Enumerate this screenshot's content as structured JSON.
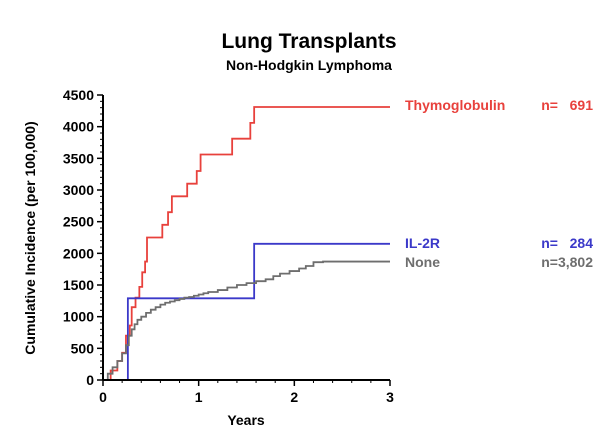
{
  "chart_data": {
    "type": "line",
    "title": "Lung Transplants",
    "subtitle": "Non-Hodgkin Lymphoma",
    "xlabel": "Years",
    "ylabel": "Cumulative Incidence (per 100,000)",
    "xlim": [
      0,
      3
    ],
    "ylim": [
      0,
      4500
    ],
    "x_ticks": [
      0,
      1,
      2,
      3
    ],
    "y_ticks": [
      0,
      500,
      1000,
      1500,
      2000,
      2500,
      3000,
      3500,
      4000,
      4500
    ],
    "grid": false,
    "legend_position": "right",
    "series": [
      {
        "name": "Thymoglobulin",
        "n_label": "n=   691",
        "color": "#e8413c",
        "step": true,
        "x": [
          0,
          0.08,
          0.15,
          0.2,
          0.24,
          0.28,
          0.3,
          0.34,
          0.38,
          0.41,
          0.44,
          0.46,
          0.54,
          0.62,
          0.68,
          0.72,
          0.8,
          0.88,
          0.94,
          0.98,
          1.02,
          1.1,
          1.22,
          1.32,
          1.35,
          1.5,
          1.54,
          1.58,
          1.7,
          3.0
        ],
        "y": [
          0,
          150,
          300,
          430,
          700,
          860,
          1150,
          1300,
          1470,
          1700,
          1870,
          2250,
          2250,
          2450,
          2650,
          2900,
          2900,
          3100,
          3100,
          3300,
          3560,
          3560,
          3560,
          3560,
          3810,
          3810,
          4060,
          4310,
          4310,
          4310
        ]
      },
      {
        "name": "IL-2R",
        "n_label": "n=   284",
        "color": "#3b39c9",
        "step": true,
        "x": [
          0,
          0.25,
          0.26,
          1.57,
          1.58,
          3.0
        ],
        "y": [
          0,
          0,
          1290,
          1290,
          2150,
          2150
        ]
      },
      {
        "name": "None",
        "n_label": "n=3,802",
        "color": "#6e6e6e",
        "step": true,
        "x": [
          0,
          0.05,
          0.1,
          0.15,
          0.2,
          0.24,
          0.27,
          0.3,
          0.33,
          0.36,
          0.4,
          0.45,
          0.5,
          0.55,
          0.6,
          0.65,
          0.7,
          0.75,
          0.8,
          0.85,
          0.9,
          0.95,
          1.0,
          1.05,
          1.1,
          1.2,
          1.3,
          1.4,
          1.5,
          1.6,
          1.7,
          1.78,
          1.85,
          1.95,
          2.05,
          2.12,
          2.2,
          2.3,
          2.5,
          2.7,
          3.0
        ],
        "y": [
          0,
          100,
          200,
          300,
          420,
          550,
          700,
          800,
          880,
          950,
          1000,
          1060,
          1110,
          1150,
          1190,
          1220,
          1240,
          1260,
          1280,
          1300,
          1310,
          1330,
          1350,
          1370,
          1390,
          1420,
          1460,
          1500,
          1530,
          1560,
          1590,
          1640,
          1680,
          1720,
          1760,
          1800,
          1860,
          1870,
          1870,
          1870,
          1870
        ]
      }
    ]
  }
}
